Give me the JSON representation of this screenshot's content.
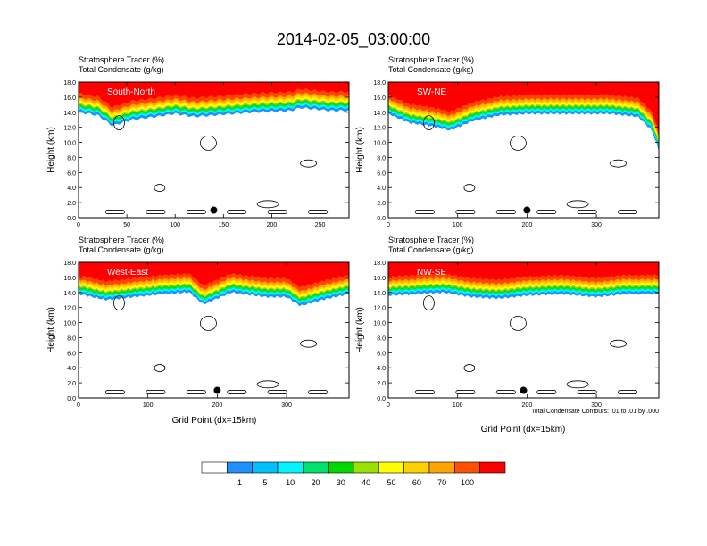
{
  "figure": {
    "title": "2014-02-05_03:00:00",
    "contour_note": "Total Condensate Contours: .01 to .01 by .000"
  },
  "chart_data": [
    {
      "type": "heatmap",
      "panel_label": "South-North",
      "title_lines": [
        "Stratosphere Tracer   (%)",
        "Total Condensate   (g/kg)"
      ],
      "ylabel": "Height (km)",
      "xlabel": "",
      "xlim": [
        0,
        280
      ],
      "ylim": [
        0,
        18
      ],
      "xticks": [
        0,
        50,
        100,
        150,
        200,
        250
      ],
      "yticks": [
        "0.0",
        "2.0",
        "4.0",
        "6.0",
        "8.0",
        "10.0",
        "12.0",
        "14.0",
        "16.0",
        "18.0"
      ],
      "tracer_front_km": [
        [
          0,
          15.6
        ],
        [
          20,
          15.2
        ],
        [
          35,
          13.8
        ],
        [
          55,
          14.6
        ],
        [
          80,
          15.0
        ],
        [
          100,
          15.4
        ],
        [
          120,
          15.0
        ],
        [
          140,
          15.2
        ],
        [
          180,
          15.6
        ],
        [
          220,
          15.8
        ],
        [
          230,
          16.2
        ],
        [
          260,
          15.8
        ],
        [
          280,
          15.8
        ]
      ],
      "marker": {
        "x": 140,
        "y": 1.0
      }
    },
    {
      "type": "heatmap",
      "panel_label": "SW-NE",
      "title_lines": [
        "Stratosphere Tracer   (%)",
        "Total Condensate   (g/kg)"
      ],
      "ylabel": "Height (km)",
      "xlabel": "",
      "xlim": [
        0,
        390
      ],
      "ylim": [
        0,
        18
      ],
      "xticks": [
        0,
        100,
        200,
        300
      ],
      "yticks": [
        "0.0",
        "2.0",
        "4.0",
        "6.0",
        "8.0",
        "10.0",
        "12.0",
        "14.0",
        "16.0",
        "18.0"
      ],
      "tracer_front_km": [
        [
          0,
          15.4
        ],
        [
          30,
          14.2
        ],
        [
          60,
          13.8
        ],
        [
          90,
          13.2
        ],
        [
          120,
          14.4
        ],
        [
          160,
          15.2
        ],
        [
          200,
          15.4
        ],
        [
          260,
          15.4
        ],
        [
          320,
          15.4
        ],
        [
          360,
          15.0
        ],
        [
          380,
          13.2
        ],
        [
          390,
          10.5
        ]
      ],
      "marker": {
        "x": 200,
        "y": 1.0
      }
    },
    {
      "type": "heatmap",
      "panel_label": "West-East",
      "title_lines": [
        "Stratosphere Tracer   (%)",
        "Total Condensate   (g/kg)"
      ],
      "ylabel": "Height (km)",
      "xlabel": "Grid Point (dx=15km)",
      "xlim": [
        0,
        390
      ],
      "ylim": [
        0,
        18
      ],
      "xticks": [
        0,
        100,
        200,
        300
      ],
      "yticks": [
        "0.0",
        "2.0",
        "4.0",
        "6.0",
        "8.0",
        "10.0",
        "12.0",
        "14.0",
        "16.0",
        "18.0"
      ],
      "tracer_front_km": [
        [
          0,
          15.4
        ],
        [
          40,
          14.6
        ],
        [
          80,
          15.0
        ],
        [
          120,
          15.4
        ],
        [
          160,
          15.6
        ],
        [
          180,
          14.0
        ],
        [
          220,
          15.6
        ],
        [
          270,
          15.0
        ],
        [
          300,
          15.0
        ],
        [
          320,
          13.8
        ],
        [
          350,
          14.6
        ],
        [
          390,
          15.4
        ]
      ],
      "marker": {
        "x": 200,
        "y": 1.0
      }
    },
    {
      "type": "heatmap",
      "panel_label": "NW-SE",
      "title_lines": [
        "Stratosphere Tracer   (%)",
        "Total Condensate   (g/kg)"
      ],
      "ylabel": "Height (km)",
      "xlabel": "Grid Point (dx=15km)",
      "xlim": [
        0,
        390
      ],
      "ylim": [
        0,
        18
      ],
      "xticks": [
        0,
        100,
        200,
        300
      ],
      "yticks": [
        "0.0",
        "2.0",
        "4.0",
        "6.0",
        "8.0",
        "10.0",
        "12.0",
        "14.0",
        "16.0",
        "18.0"
      ],
      "tracer_front_km": [
        [
          0,
          15.2
        ],
        [
          40,
          15.4
        ],
        [
          80,
          15.6
        ],
        [
          120,
          15.0
        ],
        [
          160,
          14.8
        ],
        [
          200,
          15.2
        ],
        [
          250,
          15.4
        ],
        [
          300,
          15.0
        ],
        [
          340,
          15.4
        ],
        [
          390,
          15.4
        ]
      ],
      "marker": {
        "x": 195,
        "y": 1.0
      }
    }
  ],
  "colorbar": {
    "labels": [
      "1",
      "5",
      "10",
      "20",
      "30",
      "40",
      "50",
      "60",
      "70",
      "100"
    ],
    "colors": [
      "#ffffff",
      "#1e90ff",
      "#00bfff",
      "#00f5ff",
      "#00e070",
      "#00d800",
      "#9ae000",
      "#ffff00",
      "#ffd000",
      "#ffa500",
      "#ff5000",
      "#ff0000"
    ]
  }
}
